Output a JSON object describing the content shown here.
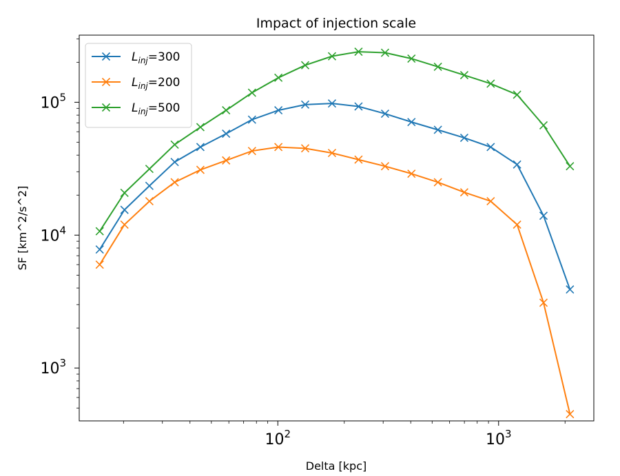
{
  "chart_data": {
    "type": "line",
    "title": "Impact of injection scale",
    "xlabel": "Delta [kpc]",
    "ylabel": "SF [km^2/s^2]",
    "xscale": "log",
    "yscale": "log",
    "xlim": [
      12.6,
      2700
    ],
    "ylim": [
      400,
      320000
    ],
    "grid": false,
    "legend_loc": "upper left",
    "marker": "x",
    "x": [
      15.6,
      20.2,
      26.2,
      34.1,
      44.6,
      58.3,
      76.4,
      100.6,
      133.0,
      176.0,
      232.0,
      306.0,
      403.0,
      531.0,
      699.0,
      921.0,
      1213.0,
      1598.0,
      2105.0
    ],
    "xticks": [
      {
        "value": 100,
        "base": "10",
        "exp": "2"
      },
      {
        "value": 1000,
        "base": "10",
        "exp": "3"
      }
    ],
    "yticks": [
      {
        "value": 1000,
        "base": "10",
        "exp": "3"
      },
      {
        "value": 10000,
        "base": "10",
        "exp": "4"
      },
      {
        "value": 100000,
        "base": "10",
        "exp": "5"
      }
    ],
    "series": [
      {
        "name": "L_inj=300",
        "legend_main": "L",
        "legend_sub": "inj",
        "legend_rest": "=300",
        "color": "#1f77b4",
        "values": [
          7800,
          15500,
          23500,
          35500,
          46000,
          58000,
          74000,
          87000,
          96000,
          98000,
          93000,
          82000,
          71000,
          62000,
          54000,
          46000,
          34000,
          14000,
          3900
        ]
      },
      {
        "name": "L_inj=200",
        "legend_main": "L",
        "legend_sub": "inj",
        "legend_rest": "=200",
        "color": "#ff7f0e",
        "values": [
          6000,
          12000,
          18000,
          25000,
          31000,
          36500,
          43000,
          46000,
          45000,
          41500,
          37000,
          33000,
          29000,
          25000,
          21000,
          18000,
          12000,
          3100,
          450
        ]
      },
      {
        "name": "L_inj=500",
        "legend_main": "L",
        "legend_sub": "inj",
        "legend_rest": "=500",
        "color": "#2ca02c",
        "values": [
          10700,
          20800,
          31500,
          48000,
          65000,
          87000,
          118000,
          153000,
          190000,
          222000,
          240000,
          236000,
          213000,
          185000,
          160000,
          138000,
          114000,
          67000,
          33000
        ]
      }
    ]
  }
}
